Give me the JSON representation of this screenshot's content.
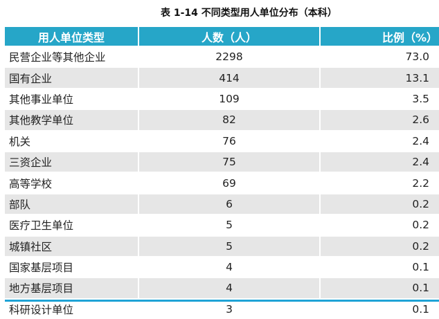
{
  "title": "表 1-14  不同类型用人单位分布（本科）",
  "headers": [
    "用人单位类型",
    "人数（人）",
    "比例（%）"
  ],
  "rows": [
    {
      "type": "民营企业等其他企业",
      "count": "2298",
      "pct": "73.0"
    },
    {
      "type": "国有企业",
      "count": "414",
      "pct": "13.1"
    },
    {
      "type": "其他事业单位",
      "count": "109",
      "pct": "3.5"
    },
    {
      "type": "其他教学单位",
      "count": "82",
      "pct": "2.6"
    },
    {
      "type": "机关",
      "count": "76",
      "pct": "2.4"
    },
    {
      "type": "三资企业",
      "count": "75",
      "pct": "2.4"
    },
    {
      "type": "高等学校",
      "count": "69",
      "pct": "2.2"
    },
    {
      "type": "部队",
      "count": "6",
      "pct": "0.2"
    },
    {
      "type": "医疗卫生单位",
      "count": "5",
      "pct": "0.2"
    },
    {
      "type": "城镇社区",
      "count": "5",
      "pct": "0.2"
    },
    {
      "type": "国家基层项目",
      "count": "4",
      "pct": "0.1"
    },
    {
      "type": "地方基层项目",
      "count": "4",
      "pct": "0.1"
    },
    {
      "type": "科研设计单位",
      "count": "3",
      "pct": "0.1"
    }
  ],
  "colors": {
    "header": "#26a6c8",
    "alt_row": "#e6e6e6",
    "bottom_rule": "#1fa3d6"
  }
}
